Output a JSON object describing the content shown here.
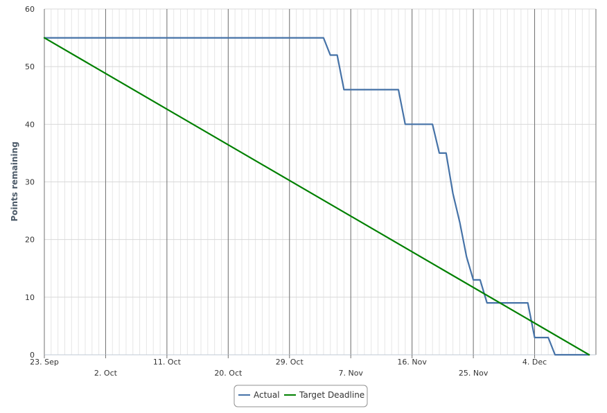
{
  "chart_data": {
    "type": "line",
    "title": "",
    "xlabel": "",
    "ylabel": "Points remaining",
    "ylim": [
      0,
      60
    ],
    "y_ticks": [
      0,
      10,
      20,
      30,
      40,
      50,
      60
    ],
    "x_range": [
      "2023-09-23",
      "2023-12-13"
    ],
    "x_ticks": [
      {
        "date": "2023-09-23",
        "label": "23. Sep"
      },
      {
        "date": "2023-10-02",
        "label": "2. Oct"
      },
      {
        "date": "2023-10-11",
        "label": "11. Oct"
      },
      {
        "date": "2023-10-20",
        "label": "20. Oct"
      },
      {
        "date": "2023-10-29",
        "label": "29. Oct"
      },
      {
        "date": "2023-11-07",
        "label": "7. Nov"
      },
      {
        "date": "2023-11-16",
        "label": "16. Nov"
      },
      {
        "date": "2023-11-25",
        "label": "25. Nov"
      },
      {
        "date": "2023-12-04",
        "label": "4. Dec"
      }
    ],
    "grid": true,
    "legend": "bottom-center",
    "series": [
      {
        "name": "Actual",
        "color": "#4572a7",
        "points": [
          {
            "x": "2023-09-23",
            "y": 55
          },
          {
            "x": "2023-11-03",
            "y": 55
          },
          {
            "x": "2023-11-04",
            "y": 52
          },
          {
            "x": "2023-11-05",
            "y": 52
          },
          {
            "x": "2023-11-06",
            "y": 46
          },
          {
            "x": "2023-11-14",
            "y": 46
          },
          {
            "x": "2023-11-15",
            "y": 40
          },
          {
            "x": "2023-11-19",
            "y": 40
          },
          {
            "x": "2023-11-20",
            "y": 35
          },
          {
            "x": "2023-11-21",
            "y": 35
          },
          {
            "x": "2023-11-22",
            "y": 28
          },
          {
            "x": "2023-11-23",
            "y": 23
          },
          {
            "x": "2023-11-24",
            "y": 17
          },
          {
            "x": "2023-11-25",
            "y": 13
          },
          {
            "x": "2023-11-26",
            "y": 13
          },
          {
            "x": "2023-11-27",
            "y": 9
          },
          {
            "x": "2023-12-03",
            "y": 9
          },
          {
            "x": "2023-12-04",
            "y": 3
          },
          {
            "x": "2023-12-06",
            "y": 3
          },
          {
            "x": "2023-12-07",
            "y": 0
          },
          {
            "x": "2023-12-12",
            "y": 0
          }
        ]
      },
      {
        "name": "Target Deadline",
        "color": "#008000",
        "points": [
          {
            "x": "2023-09-23",
            "y": 55
          },
          {
            "x": "2023-12-12",
            "y": 0
          }
        ]
      }
    ]
  }
}
